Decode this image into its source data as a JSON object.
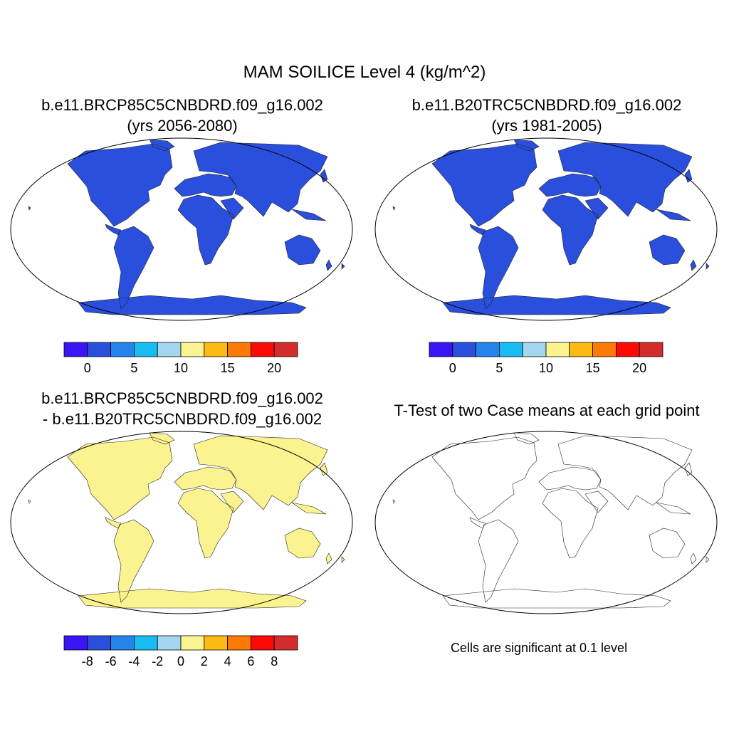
{
  "figure": {
    "title": "MAM SOILICE Level 4 (kg/m^2)"
  },
  "panels": [
    {
      "title_line1": "b.e11.BRCP85C5CNBDRD.f09_g16.002",
      "title_line2": "(yrs 2056-2080)"
    },
    {
      "title_line1": "b.e11.B20TRC5CNBDRD.f09_g16.002",
      "title_line2": "(yrs 1981-2005)"
    },
    {
      "title_line1": "b.e11.BRCP85C5CNBDRD.f09_g16.002",
      "title_line2": "- b.e11.B20TRC5CNBDRD.f09_g16.002"
    },
    {
      "title_line1": "T-Test of two Case means at each grid point"
    }
  ],
  "colorbars": {
    "absolute": {
      "colors": [
        "#3a14f2",
        "#2a4fdc",
        "#2584ec",
        "#17bdf2",
        "#a4d6f0",
        "#fbf38f",
        "#fcba12",
        "#fb7a06",
        "#fb0a06",
        "#d42b2b"
      ],
      "levels": [
        -2.5,
        0,
        2.5,
        5,
        7.5,
        10,
        12.5,
        15,
        17.5,
        20,
        22.5
      ],
      "tick_values": [
        0,
        5,
        10,
        15,
        20
      ],
      "tick_labels": [
        "0",
        "5",
        "10",
        "15",
        "20"
      ]
    },
    "difference": {
      "colors": [
        "#3a14f2",
        "#2a4fdc",
        "#2584ec",
        "#17bdf2",
        "#a4d6f0",
        "#fbf38f",
        "#fcba12",
        "#fb7a06",
        "#fb0a06",
        "#d42b2b"
      ],
      "levels": [
        -10,
        -8,
        -6,
        -4,
        -2,
        0,
        2,
        4,
        6,
        8,
        10
      ],
      "tick_values": [
        -8,
        -6,
        -4,
        -2,
        0,
        2,
        4,
        6,
        8
      ],
      "tick_labels": [
        "-8",
        "-6",
        "-4",
        "-2",
        "0",
        "2",
        "4",
        "6",
        "8"
      ]
    }
  },
  "significance_note": "Cells are significant at 0.1 level",
  "map_colors": {
    "low_land": "#2a4fdc",
    "diff_land": "#fbf38f",
    "diff_cold": "#5b7fe0",
    "significant": "#fb0a06"
  }
}
